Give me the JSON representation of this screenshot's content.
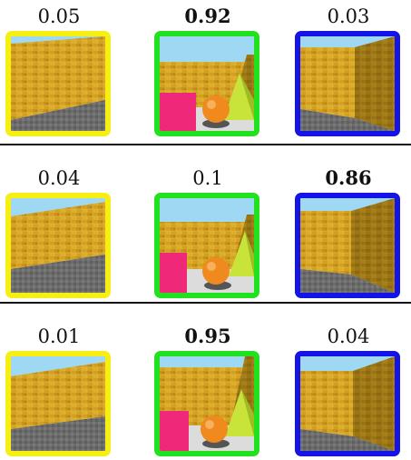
{
  "colors": {
    "yellow_border": "#f7ef12",
    "green_border": "#22e11f",
    "blue_border": "#1414e6",
    "divider": "#111111"
  },
  "rows": [
    {
      "cells": [
        {
          "score": "0.05",
          "bold": false,
          "border": "yellow",
          "scene": "wall-left"
        },
        {
          "score": "0.92",
          "bold": true,
          "border": "green",
          "scene": "objects"
        },
        {
          "score": "0.03",
          "bold": false,
          "border": "blue",
          "scene": "corner"
        }
      ]
    },
    {
      "cells": [
        {
          "score": "0.04",
          "bold": false,
          "border": "yellow",
          "scene": "wall-left"
        },
        {
          "score": "0.1",
          "bold": false,
          "border": "green",
          "scene": "objects"
        },
        {
          "score": "0.86",
          "bold": true,
          "border": "blue",
          "scene": "corner"
        }
      ]
    },
    {
      "cells": [
        {
          "score": "0.01",
          "bold": false,
          "border": "yellow",
          "scene": "wall-left"
        },
        {
          "score": "0.95",
          "bold": true,
          "border": "green",
          "scene": "objects"
        },
        {
          "score": "0.04",
          "bold": false,
          "border": "blue",
          "scene": "corner"
        }
      ]
    }
  ]
}
